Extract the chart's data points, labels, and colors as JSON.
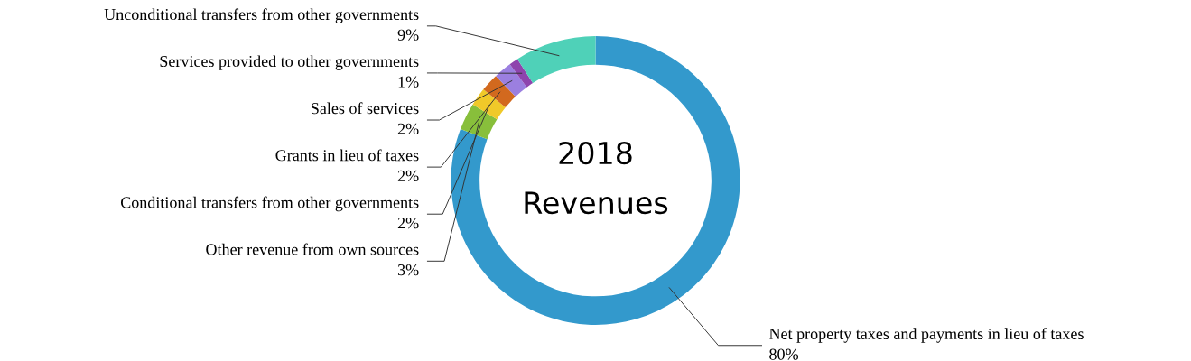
{
  "chart_data": {
    "type": "donut",
    "title": "2018\nRevenues",
    "categories": [
      "Net property taxes and payments in lieu of taxes",
      "Other revenue from own sources",
      "Conditional transfers from other governments",
      "Grants in lieu of taxes",
      "Sales of services",
      "Services provided to other governments",
      "Unconditional transfers from other governments"
    ],
    "values": [
      80,
      3,
      2,
      2,
      2,
      1,
      9
    ],
    "colors": [
      "#3399cc",
      "#88bf3b",
      "#f0c929",
      "#d2691e",
      "#9b7fe0",
      "#8e44ad",
      "#4fd1b8"
    ],
    "value_labels": [
      "80%",
      "3%",
      "2%",
      "2%",
      "2%",
      "1%",
      "9%"
    ]
  }
}
